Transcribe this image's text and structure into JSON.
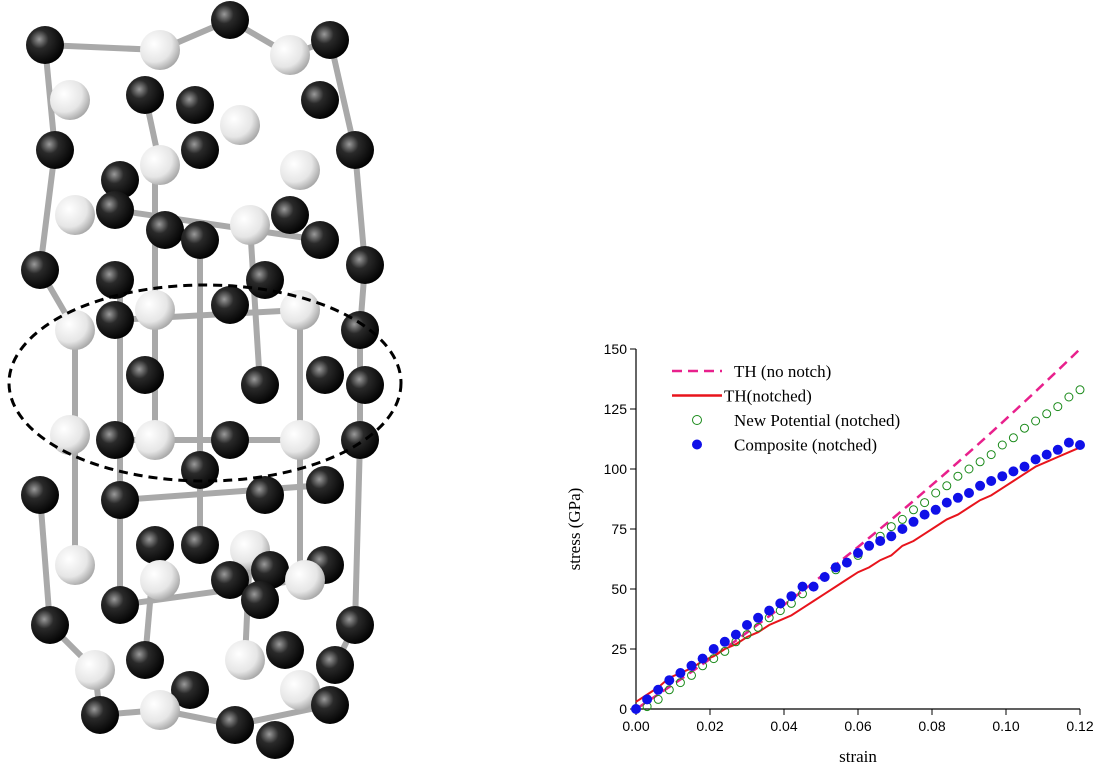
{
  "chart_data": {
    "type": "line",
    "xlabel": "strain",
    "ylabel": "stress (GPa)",
    "xlim": [
      0,
      0.12
    ],
    "ylim": [
      0,
      150
    ],
    "xticks": [
      {
        "value": 0,
        "label": "0.00"
      },
      0.02,
      0.04,
      0.06,
      0.08,
      {
        "value": 0.1,
        "label": "0.10"
      },
      0.12
    ],
    "yticks": [
      0,
      25,
      50,
      75,
      100,
      125,
      150
    ],
    "legend": "upper-left",
    "x": [
      0,
      0.003,
      0.006,
      0.009,
      0.012,
      0.015,
      0.018,
      0.021,
      0.024,
      0.027,
      0.03,
      0.033,
      0.036,
      0.039,
      0.042,
      0.045,
      0.048,
      0.051,
      0.054,
      0.057,
      0.06,
      0.063,
      0.066,
      0.069,
      0.072,
      0.075,
      0.078,
      0.081,
      0.084,
      0.087,
      0.09,
      0.093,
      0.096,
      0.099,
      0.102,
      0.105,
      0.108,
      0.111,
      0.114,
      0.117,
      0.12
    ],
    "series": [
      {
        "name": "TH (no notch)",
        "color": "#e8208c",
        "style": "dashed",
        "values": [
          0,
          3.0,
          6.1,
          9.2,
          12.3,
          15.5,
          18.7,
          21.9,
          25.2,
          28.5,
          31.9,
          35.3,
          38.7,
          42.2,
          45.7,
          49.2,
          52.8,
          56.4,
          60.1,
          63.8,
          67.5,
          71.3,
          75.1,
          78.9,
          82.8,
          86.7,
          90.7,
          94.7,
          98.7,
          102.8,
          106.9,
          111,
          115.2,
          119.4,
          123.7,
          128,
          132.3,
          136.7,
          141.1,
          145.5,
          150
        ]
      },
      {
        "name": "TH(notched)",
        "color": "#e8141c",
        "style": "solid",
        "values": [
          3,
          6,
          9,
          13,
          15,
          17,
          20,
          22,
          25,
          27,
          30,
          32,
          35,
          37,
          39,
          42,
          45,
          48,
          51,
          54,
          57,
          59,
          62,
          64,
          68,
          70,
          73,
          76,
          79,
          81,
          84,
          87,
          89,
          92,
          95,
          98,
          101,
          103,
          105,
          107,
          109
        ]
      },
      {
        "name": "New Potential (notched)",
        "color": "#1a8a1a",
        "style": "open-circle",
        "values": [
          0,
          1,
          4,
          8,
          11,
          14,
          18,
          21,
          24,
          28,
          31,
          34,
          38,
          41,
          44,
          48,
          51,
          55,
          58,
          61,
          64,
          68,
          72,
          76,
          79,
          83,
          86,
          90,
          93,
          97,
          100,
          103,
          106,
          110,
          113,
          117,
          120,
          123,
          126,
          130,
          133
        ]
      },
      {
        "name": "Composite (notched)",
        "color": "#1010e8",
        "style": "filled-circle",
        "values": [
          0,
          4,
          8,
          12,
          15,
          18,
          21,
          25,
          28,
          31,
          35,
          38,
          41,
          44,
          47,
          51,
          51,
          55,
          59,
          61,
          65,
          68,
          70,
          72,
          75,
          78,
          81,
          83,
          86,
          88,
          90,
          93,
          95,
          97,
          99,
          101,
          104,
          106,
          108,
          111,
          110
        ]
      }
    ]
  }
}
